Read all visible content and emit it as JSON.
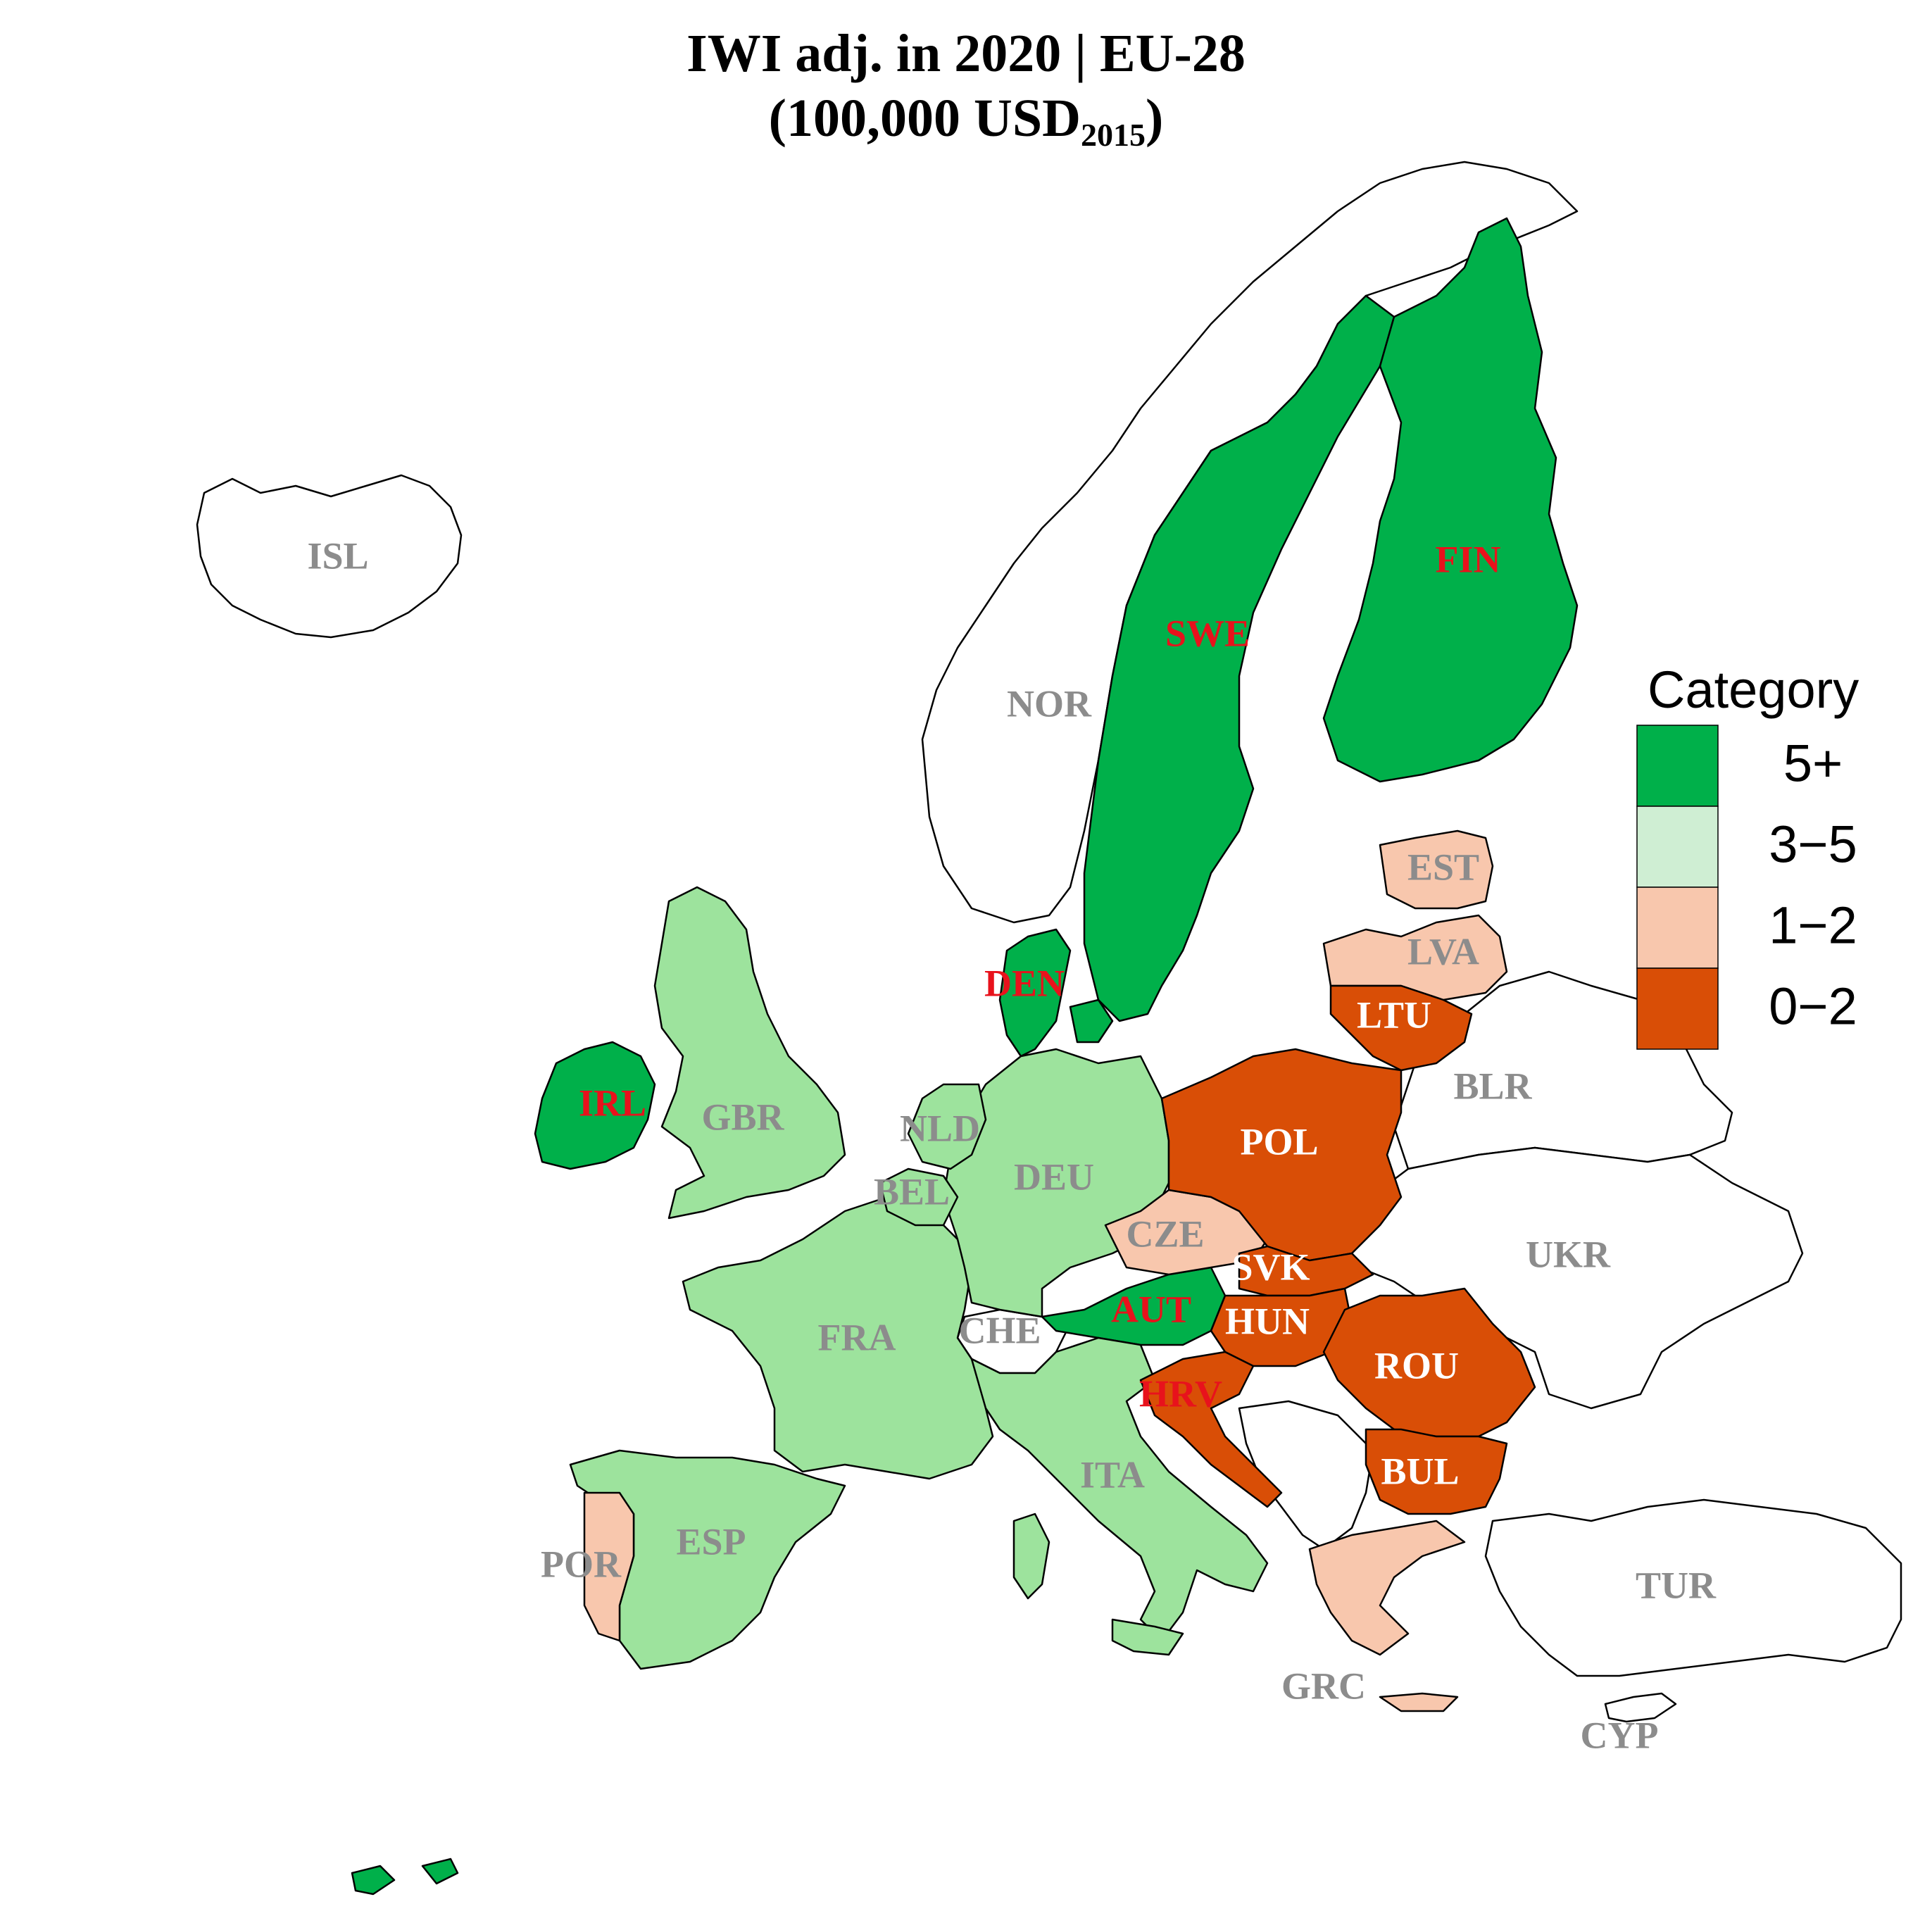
{
  "title_line1": "IWI adj. in 2020 | EU-28",
  "title_line2_main": "(100,000 USD",
  "title_line2_sub": "2015",
  "title_line2_end": ")",
  "legend": {
    "title": "Category",
    "items": [
      {
        "label": "5+",
        "color": "#00b04a"
      },
      {
        "label": "3−5",
        "color": "#cfeed3"
      },
      {
        "label": "1−2",
        "color": "#f8c7ad"
      },
      {
        "label": "0−2",
        "color": "#d94e06"
      }
    ]
  },
  "colors": {
    "cat5": "#00b04a",
    "cat35_map": "#9de39d",
    "cat12": "#f8c7ad",
    "cat02": "#d94e06",
    "nonmember": "#ffffff",
    "label_red": "#e8121c",
    "label_white": "#ffffff",
    "label_gray": "#8c8c8c"
  },
  "countries": [
    {
      "code": "ISL",
      "category": "non-member"
    },
    {
      "code": "NOR",
      "category": "non-member"
    },
    {
      "code": "SWE",
      "category": "5+"
    },
    {
      "code": "FIN",
      "category": "5+"
    },
    {
      "code": "EST",
      "category": "1-2"
    },
    {
      "code": "LVA",
      "category": "1-2"
    },
    {
      "code": "LTU",
      "category": "0-2"
    },
    {
      "code": "BLR",
      "category": "non-member"
    },
    {
      "code": "DEN",
      "category": "5+"
    },
    {
      "code": "IRL",
      "category": "5+"
    },
    {
      "code": "GBR",
      "category": "3-5"
    },
    {
      "code": "NLD",
      "category": "3-5"
    },
    {
      "code": "BEL",
      "category": "3-5"
    },
    {
      "code": "DEU",
      "category": "3-5"
    },
    {
      "code": "POL",
      "category": "0-2"
    },
    {
      "code": "UKR",
      "category": "non-member"
    },
    {
      "code": "CZE",
      "category": "1-2"
    },
    {
      "code": "SVK",
      "category": "0-2"
    },
    {
      "code": "AUT",
      "category": "5+"
    },
    {
      "code": "HUN",
      "category": "0-2"
    },
    {
      "code": "FRA",
      "category": "3-5"
    },
    {
      "code": "CHE",
      "category": "non-member"
    },
    {
      "code": "ROU",
      "category": "0-2"
    },
    {
      "code": "HRV",
      "category": "0-2"
    },
    {
      "code": "ITA",
      "category": "3-5"
    },
    {
      "code": "BUL",
      "category": "0-2"
    },
    {
      "code": "ESP",
      "category": "3-5"
    },
    {
      "code": "POR",
      "category": "1-2"
    },
    {
      "code": "TUR",
      "category": "non-member"
    },
    {
      "code": "GRC",
      "category": "1-2"
    },
    {
      "code": "CYP",
      "category": "non-member"
    }
  ]
}
